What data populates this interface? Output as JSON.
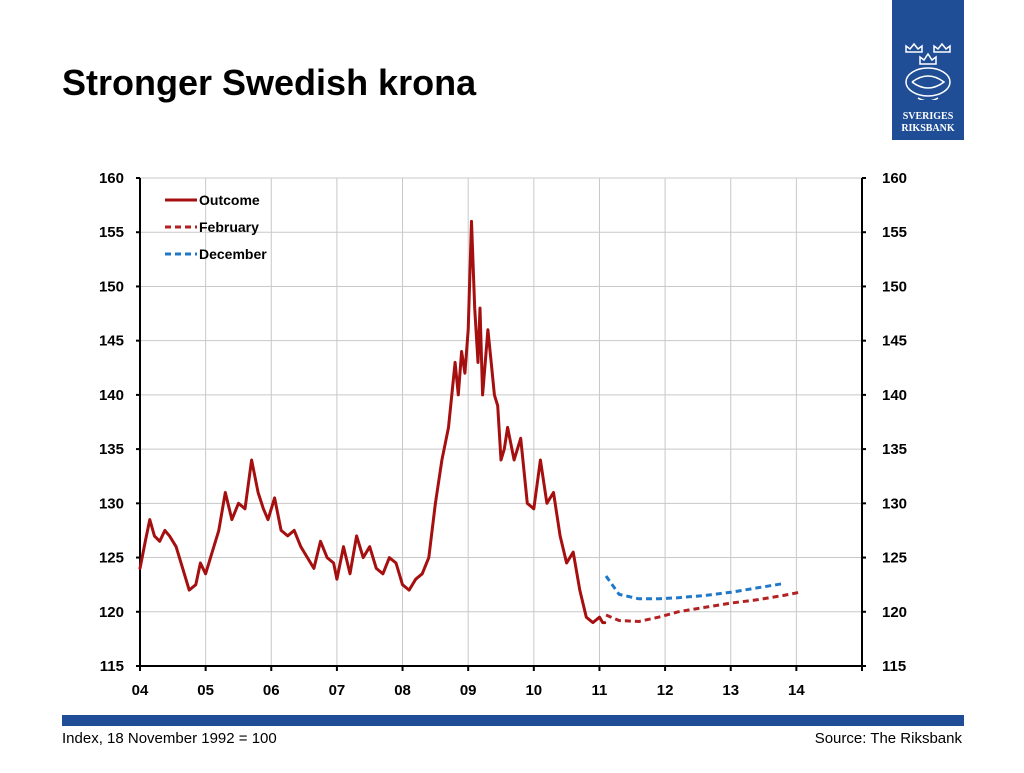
{
  "title": "Stronger Swedish krona",
  "logo": {
    "line1": "SVERIGES",
    "line2": "RIKSBANK"
  },
  "footer": {
    "left": "Index, 18 November 1992 = 100",
    "right": "Source: The Riksbank"
  },
  "colors": {
    "brand": "#1f4e96",
    "outcome": "#a50f0f",
    "february": "#b22222",
    "december": "#1f78c8"
  },
  "chart_data": {
    "type": "line",
    "xlabel": "",
    "ylabel": "",
    "ylim": [
      115,
      160
    ],
    "xlim": [
      2004,
      2015
    ],
    "yticks": [
      115,
      120,
      125,
      130,
      135,
      140,
      145,
      150,
      155,
      160
    ],
    "xtick_labels": [
      "04",
      "05",
      "06",
      "07",
      "08",
      "09",
      "10",
      "11",
      "12",
      "13",
      "14"
    ],
    "grid": true,
    "legend_position": "top-left",
    "series": [
      {
        "name": "Outcome",
        "style": "solid",
        "x": [
          2004.0,
          2004.08,
          2004.15,
          2004.22,
          2004.3,
          2004.38,
          2004.45,
          2004.55,
          2004.65,
          2004.75,
          2004.85,
          2004.92,
          2005.0,
          2005.1,
          2005.2,
          2005.3,
          2005.4,
          2005.5,
          2005.6,
          2005.7,
          2005.8,
          2005.88,
          2005.95,
          2006.05,
          2006.15,
          2006.25,
          2006.35,
          2006.45,
          2006.55,
          2006.65,
          2006.75,
          2006.85,
          2006.95,
          2007.0,
          2007.1,
          2007.2,
          2007.3,
          2007.4,
          2007.5,
          2007.6,
          2007.7,
          2007.8,
          2007.9,
          2008.0,
          2008.1,
          2008.2,
          2008.3,
          2008.4,
          2008.5,
          2008.6,
          2008.7,
          2008.8,
          2008.85,
          2008.9,
          2008.95,
          2009.0,
          2009.05,
          2009.1,
          2009.15,
          2009.18,
          2009.22,
          2009.3,
          2009.35,
          2009.4,
          2009.45,
          2009.5,
          2009.55,
          2009.6,
          2009.7,
          2009.8,
          2009.9,
          2010.0,
          2010.1,
          2010.2,
          2010.3,
          2010.4,
          2010.5,
          2010.6,
          2010.7,
          2010.8,
          2010.9,
          2011.0,
          2011.05,
          2011.08
        ],
        "values": [
          124.0,
          126.5,
          128.5,
          127.0,
          126.5,
          127.5,
          127.0,
          126.0,
          124.0,
          122.0,
          122.5,
          124.5,
          123.5,
          125.5,
          127.5,
          131.0,
          128.5,
          130.0,
          129.5,
          134.0,
          131.0,
          129.5,
          128.5,
          130.5,
          127.5,
          127.0,
          127.5,
          126.0,
          125.0,
          124.0,
          126.5,
          125.0,
          124.5,
          123.0,
          126.0,
          123.5,
          127.0,
          125.0,
          126.0,
          124.0,
          123.5,
          125.0,
          124.5,
          122.5,
          122.0,
          123.0,
          123.5,
          125.0,
          130.0,
          134.0,
          137.0,
          143.0,
          140.0,
          144.0,
          142.0,
          146.0,
          156.0,
          148.0,
          143.0,
          148.0,
          140.0,
          146.0,
          143.0,
          140.0,
          139.0,
          134.0,
          135.0,
          137.0,
          134.0,
          136.0,
          130.0,
          129.5,
          134.0,
          130.0,
          131.0,
          127.0,
          124.5,
          125.5,
          122.0,
          119.5,
          119.0,
          119.5,
          119.0,
          119.0
        ],
        "color": "#a50f0f"
      },
      {
        "name": "February",
        "style": "dashed",
        "x": [
          2011.1,
          2011.3,
          2011.6,
          2011.9,
          2012.2,
          2012.6,
          2013.0,
          2013.4,
          2013.8,
          2014.05
        ],
        "values": [
          119.7,
          119.2,
          119.1,
          119.5,
          120.0,
          120.4,
          120.8,
          121.1,
          121.5,
          121.8
        ],
        "color": "#b22222"
      },
      {
        "name": "December",
        "style": "dashed",
        "x": [
          2011.1,
          2011.3,
          2011.6,
          2011.9,
          2012.2,
          2012.6,
          2013.0,
          2013.4,
          2013.8
        ],
        "values": [
          123.3,
          121.6,
          121.2,
          121.2,
          121.3,
          121.5,
          121.8,
          122.2,
          122.6
        ],
        "color": "#1f78c8"
      }
    ]
  }
}
